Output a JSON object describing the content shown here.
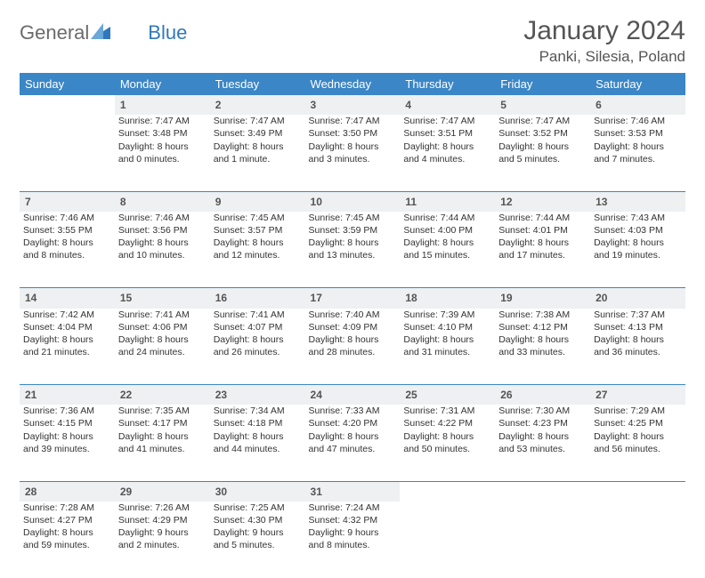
{
  "logo": {
    "word1": "General",
    "word2": "Blue"
  },
  "title": "January 2024",
  "location": "Panki, Silesia, Poland",
  "colors": {
    "header_bg": "#3b86c6",
    "header_text": "#ffffff",
    "daynum_bg": "#eef0f1",
    "row_border": "#3b86c6",
    "logo_gray": "#6b6b6b",
    "logo_blue": "#2f78bd"
  },
  "weekdays": [
    "Sunday",
    "Monday",
    "Tuesday",
    "Wednesday",
    "Thursday",
    "Friday",
    "Saturday"
  ],
  "weeks": [
    {
      "nums": [
        "",
        "1",
        "2",
        "3",
        "4",
        "5",
        "6"
      ],
      "cells": [
        "",
        "Sunrise: 7:47 AM\nSunset: 3:48 PM\nDaylight: 8 hours and 0 minutes.",
        "Sunrise: 7:47 AM\nSunset: 3:49 PM\nDaylight: 8 hours and 1 minute.",
        "Sunrise: 7:47 AM\nSunset: 3:50 PM\nDaylight: 8 hours and 3 minutes.",
        "Sunrise: 7:47 AM\nSunset: 3:51 PM\nDaylight: 8 hours and 4 minutes.",
        "Sunrise: 7:47 AM\nSunset: 3:52 PM\nDaylight: 8 hours and 5 minutes.",
        "Sunrise: 7:46 AM\nSunset: 3:53 PM\nDaylight: 8 hours and 7 minutes."
      ]
    },
    {
      "nums": [
        "7",
        "8",
        "9",
        "10",
        "11",
        "12",
        "13"
      ],
      "cells": [
        "Sunrise: 7:46 AM\nSunset: 3:55 PM\nDaylight: 8 hours and 8 minutes.",
        "Sunrise: 7:46 AM\nSunset: 3:56 PM\nDaylight: 8 hours and 10 minutes.",
        "Sunrise: 7:45 AM\nSunset: 3:57 PM\nDaylight: 8 hours and 12 minutes.",
        "Sunrise: 7:45 AM\nSunset: 3:59 PM\nDaylight: 8 hours and 13 minutes.",
        "Sunrise: 7:44 AM\nSunset: 4:00 PM\nDaylight: 8 hours and 15 minutes.",
        "Sunrise: 7:44 AM\nSunset: 4:01 PM\nDaylight: 8 hours and 17 minutes.",
        "Sunrise: 7:43 AM\nSunset: 4:03 PM\nDaylight: 8 hours and 19 minutes."
      ]
    },
    {
      "nums": [
        "14",
        "15",
        "16",
        "17",
        "18",
        "19",
        "20"
      ],
      "cells": [
        "Sunrise: 7:42 AM\nSunset: 4:04 PM\nDaylight: 8 hours and 21 minutes.",
        "Sunrise: 7:41 AM\nSunset: 4:06 PM\nDaylight: 8 hours and 24 minutes.",
        "Sunrise: 7:41 AM\nSunset: 4:07 PM\nDaylight: 8 hours and 26 minutes.",
        "Sunrise: 7:40 AM\nSunset: 4:09 PM\nDaylight: 8 hours and 28 minutes.",
        "Sunrise: 7:39 AM\nSunset: 4:10 PM\nDaylight: 8 hours and 31 minutes.",
        "Sunrise: 7:38 AM\nSunset: 4:12 PM\nDaylight: 8 hours and 33 minutes.",
        "Sunrise: 7:37 AM\nSunset: 4:13 PM\nDaylight: 8 hours and 36 minutes."
      ]
    },
    {
      "nums": [
        "21",
        "22",
        "23",
        "24",
        "25",
        "26",
        "27"
      ],
      "cells": [
        "Sunrise: 7:36 AM\nSunset: 4:15 PM\nDaylight: 8 hours and 39 minutes.",
        "Sunrise: 7:35 AM\nSunset: 4:17 PM\nDaylight: 8 hours and 41 minutes.",
        "Sunrise: 7:34 AM\nSunset: 4:18 PM\nDaylight: 8 hours and 44 minutes.",
        "Sunrise: 7:33 AM\nSunset: 4:20 PM\nDaylight: 8 hours and 47 minutes.",
        "Sunrise: 7:31 AM\nSunset: 4:22 PM\nDaylight: 8 hours and 50 minutes.",
        "Sunrise: 7:30 AM\nSunset: 4:23 PM\nDaylight: 8 hours and 53 minutes.",
        "Sunrise: 7:29 AM\nSunset: 4:25 PM\nDaylight: 8 hours and 56 minutes."
      ]
    },
    {
      "nums": [
        "28",
        "29",
        "30",
        "31",
        "",
        "",
        ""
      ],
      "cells": [
        "Sunrise: 7:28 AM\nSunset: 4:27 PM\nDaylight: 8 hours and 59 minutes.",
        "Sunrise: 7:26 AM\nSunset: 4:29 PM\nDaylight: 9 hours and 2 minutes.",
        "Sunrise: 7:25 AM\nSunset: 4:30 PM\nDaylight: 9 hours and 5 minutes.",
        "Sunrise: 7:24 AM\nSunset: 4:32 PM\nDaylight: 9 hours and 8 minutes.",
        "",
        "",
        ""
      ]
    }
  ]
}
